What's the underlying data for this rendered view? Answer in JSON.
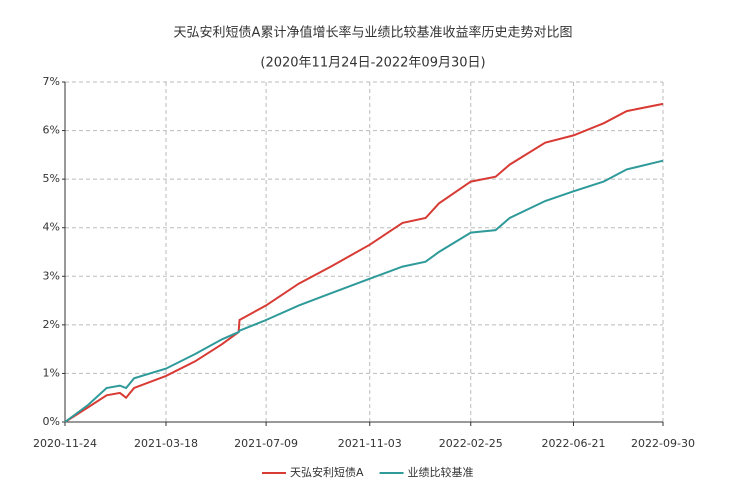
{
  "chart_data": {
    "type": "line",
    "title": "天弘安利短债A累计净值增长率与业绩比较基准收益率历史走势对比图",
    "subtitle": "(2020年11月24日-2022年09月30日)",
    "x": [
      "2020-11-24",
      "2020-12-20",
      "2021-01-10",
      "2021-01-25",
      "2021-02-01",
      "2021-02-10",
      "2021-03-18",
      "2021-04-20",
      "2021-05-20",
      "2021-06-08",
      "2021-06-09",
      "2021-07-09",
      "2021-08-15",
      "2021-09-20",
      "2021-11-03",
      "2021-12-10",
      "2022-01-05",
      "2022-01-20",
      "2022-02-25",
      "2022-03-25",
      "2022-04-10",
      "2022-05-20",
      "2022-06-21",
      "2022-07-25",
      "2022-08-20",
      "2022-09-30"
    ],
    "series": [
      {
        "name": "天弘安利短债A",
        "color": "#d83a34",
        "values": [
          0,
          0.3,
          0.55,
          0.6,
          0.5,
          0.7,
          0.95,
          1.25,
          1.6,
          1.85,
          2.1,
          2.4,
          2.85,
          3.2,
          3.65,
          4.1,
          4.2,
          4.5,
          4.95,
          5.05,
          5.3,
          5.75,
          5.9,
          6.15,
          6.4,
          6.55
        ]
      },
      {
        "name": "业绩比较基准",
        "color": "#2f9a9a",
        "values": [
          0,
          0.35,
          0.7,
          0.75,
          0.7,
          0.9,
          1.1,
          1.4,
          1.7,
          1.85,
          1.88,
          2.1,
          2.4,
          2.65,
          2.95,
          3.2,
          3.3,
          3.5,
          3.9,
          3.95,
          4.2,
          4.55,
          4.75,
          4.95,
          5.2,
          5.38
        ]
      }
    ],
    "xlim": [
      "2020-11-24",
      "2022-09-30"
    ],
    "xticks": [
      "2020-11-24",
      "2021-03-18",
      "2021-07-09",
      "2021-11-03",
      "2022-02-25",
      "2022-06-21",
      "2022-09-30"
    ],
    "ylim": [
      0,
      7
    ],
    "yticks": [
      {
        "value": 0,
        "label": "0%"
      },
      {
        "value": 1,
        "label": "1%"
      },
      {
        "value": 2,
        "label": "2%"
      },
      {
        "value": 3,
        "label": "3%"
      },
      {
        "value": 4,
        "label": "4%"
      },
      {
        "value": 5,
        "label": "5%"
      },
      {
        "value": 6,
        "label": "6%"
      },
      {
        "value": 7,
        "label": "7%"
      }
    ],
    "grid": true
  }
}
